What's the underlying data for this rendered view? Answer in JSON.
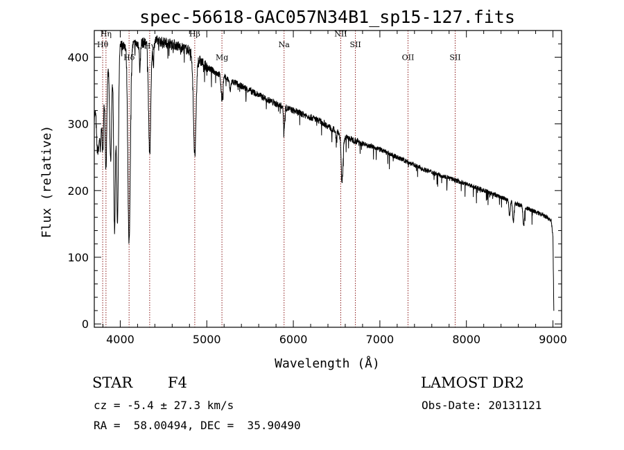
{
  "chart_data": {
    "type": "line",
    "title": "spec-56618-GAC057N34B1_sp15-127.fits",
    "xlabel": "Wavelength (Å)",
    "ylabel": "Flux (relative)",
    "xlim": [
      3700,
      9100
    ],
    "ylim": [
      -5,
      440
    ],
    "x_ticks": [
      4000,
      5000,
      6000,
      7000,
      8000,
      9000
    ],
    "x_tick_labels": [
      "4000",
      "5000",
      "6000",
      "7000",
      "8000",
      "9000"
    ],
    "y_ticks": [
      0,
      100,
      200,
      300,
      400
    ],
    "y_tick_labels": [
      "0",
      "100",
      "200",
      "300",
      "400"
    ],
    "grid": false,
    "line_color": "#000000",
    "marker_color": "#8b1a1a",
    "lines": [
      {
        "name": "Hη",
        "x": 3835,
        "label_y": 431
      },
      {
        "name": "Hθ",
        "x": 3797,
        "label_y": 415
      },
      {
        "name": "Hδ",
        "x": 4102,
        "label_y": 396
      },
      {
        "name": "Hγ",
        "x": 4340,
        "label_y": 413
      },
      {
        "name": "Hβ",
        "x": 4861,
        "label_y": 431
      },
      {
        "name": "Mg",
        "x": 5175,
        "label_y": 396
      },
      {
        "name": "Na",
        "x": 5893,
        "label_y": 415
      },
      {
        "name": "NII",
        "x": 6548,
        "label_y": 431
      },
      {
        "name": "SII",
        "x": 6717,
        "label_y": 415
      },
      {
        "name": "OII",
        "x": 7325,
        "label_y": 396
      },
      {
        "name": "SII",
        "x": 7870,
        "label_y": 396
      }
    ],
    "continuum": [
      [
        3700,
        310
      ],
      [
        3800,
        370
      ],
      [
        3900,
        410
      ],
      [
        4000,
        418
      ],
      [
        4200,
        420
      ],
      [
        4400,
        425
      ],
      [
        4600,
        420
      ],
      [
        4800,
        410
      ],
      [
        5000,
        385
      ],
      [
        5200,
        370
      ],
      [
        5500,
        350
      ],
      [
        5800,
        330
      ],
      [
        6000,
        320
      ],
      [
        6300,
        305
      ],
      [
        6600,
        280
      ],
      [
        7000,
        262
      ],
      [
        7500,
        232
      ],
      [
        8000,
        210
      ],
      [
        8500,
        185
      ],
      [
        8900,
        162
      ],
      [
        8980,
        155
      ],
      [
        9000,
        130
      ],
      [
        9010,
        20
      ]
    ],
    "absorption": [
      {
        "center": 3733,
        "depth": 60,
        "width": 8
      },
      {
        "center": 3750,
        "depth": 70,
        "width": 8
      },
      {
        "center": 3771,
        "depth": 90,
        "width": 8
      },
      {
        "center": 3798,
        "depth": 110,
        "width": 10
      },
      {
        "center": 3835,
        "depth": 150,
        "width": 10
      },
      {
        "center": 3889,
        "depth": 160,
        "width": 12
      },
      {
        "center": 3934,
        "depth": 270,
        "width": 10
      },
      {
        "center": 3968,
        "depth": 265,
        "width": 11
      },
      {
        "center": 4102,
        "depth": 300,
        "width": 14
      },
      {
        "center": 4227,
        "depth": 40,
        "width": 6
      },
      {
        "center": 4340,
        "depth": 170,
        "width": 13
      },
      {
        "center": 4383,
        "depth": 35,
        "width": 6
      },
      {
        "center": 4861,
        "depth": 150,
        "width": 15
      },
      {
        "center": 5175,
        "depth": 35,
        "width": 10
      },
      {
        "center": 5270,
        "depth": 15,
        "width": 8
      },
      {
        "center": 5893,
        "depth": 35,
        "width": 7
      },
      {
        "center": 6495,
        "depth": 12,
        "width": 6
      },
      {
        "center": 6563,
        "depth": 70,
        "width": 11
      },
      {
        "center": 8498,
        "depth": 25,
        "width": 7
      },
      {
        "center": 8542,
        "depth": 30,
        "width": 8
      },
      {
        "center": 8662,
        "depth": 28,
        "width": 8
      }
    ]
  },
  "info": {
    "object_type": "STAR",
    "subclass": "F4",
    "survey": "LAMOST DR2",
    "cz": "cz = -5.4 ± 27.3 km/s",
    "obs_date": "Obs-Date: 20131121",
    "coords": "RA =  58.00494, DEC =  35.90490"
  }
}
